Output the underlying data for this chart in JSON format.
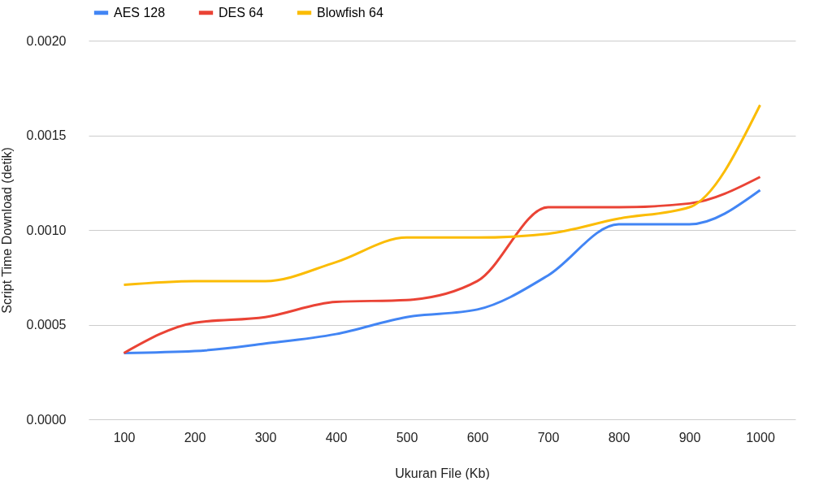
{
  "chart_data": {
    "type": "line",
    "xlabel": "Ukuran File (Kb)",
    "ylabel": "Script Time Download (detik)",
    "categories": [
      "100",
      "200",
      "300",
      "400",
      "500",
      "600",
      "700",
      "800",
      "900",
      "1000"
    ],
    "series": [
      {
        "name": "AES 128",
        "color": "#4285f4",
        "values": [
          0.00035,
          0.00036,
          0.0004,
          0.00045,
          0.00054,
          0.00058,
          0.00076,
          0.00103,
          0.00103,
          0.00121
        ]
      },
      {
        "name": "DES 64",
        "color": "#ea4335",
        "values": [
          0.00035,
          0.00051,
          0.00054,
          0.00062,
          0.00063,
          0.00073,
          0.00112,
          0.00112,
          0.00114,
          0.00128
        ]
      },
      {
        "name": "Blowfish 64",
        "color": "#fbbc04",
        "values": [
          0.00071,
          0.00073,
          0.00073,
          0.00083,
          0.00096,
          0.00096,
          0.00098,
          0.00106,
          0.00112,
          0.00166
        ]
      }
    ],
    "ylim": [
      0,
      0.002
    ],
    "yticks": [
      {
        "value": 0,
        "label": "0.0000"
      },
      {
        "value": 0.0005,
        "label": "0.0005"
      },
      {
        "value": 0.001,
        "label": "0.0010"
      },
      {
        "value": 0.0015,
        "label": "0.0015"
      },
      {
        "value": 0.002,
        "label": "0.0020"
      }
    ],
    "grid": "y",
    "legend": "top",
    "marker": "none",
    "line_style": "solid"
  }
}
